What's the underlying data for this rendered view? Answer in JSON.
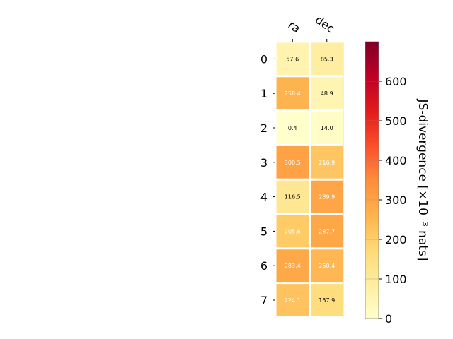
{
  "chart_data": {
    "type": "heatmap",
    "columns": [
      "ra",
      "dec"
    ],
    "rows": [
      "0",
      "1",
      "2",
      "3",
      "4",
      "5",
      "6",
      "7"
    ],
    "values": [
      [
        57.6,
        85.3
      ],
      [
        258.4,
        48.9
      ],
      [
        0.4,
        14.0
      ],
      [
        300.5,
        216.9
      ],
      [
        116.5,
        289.9
      ],
      [
        205.6,
        287.7
      ],
      [
        283.4,
        250.4
      ],
      [
        224.1,
        157.9
      ]
    ],
    "value_labels": [
      [
        "57.6",
        "85.3"
      ],
      [
        "258.4",
        "48.9"
      ],
      [
        "0.4",
        "14.0"
      ],
      [
        "300.5",
        "216.9"
      ],
      [
        "116.5",
        "289.9"
      ],
      [
        "205.6",
        "287.7"
      ],
      [
        "283.4",
        "250.4"
      ],
      [
        "224.1",
        "157.9"
      ]
    ],
    "colorbar": {
      "label": "JS-divergence [×10⁻³ nats]",
      "range": [
        0,
        700
      ],
      "ticks": [
        "0",
        "100",
        "200",
        "300",
        "400",
        "500",
        "600"
      ],
      "colormap": "YlOrRd"
    },
    "cell_text_threshold": 200,
    "grid": false
  }
}
